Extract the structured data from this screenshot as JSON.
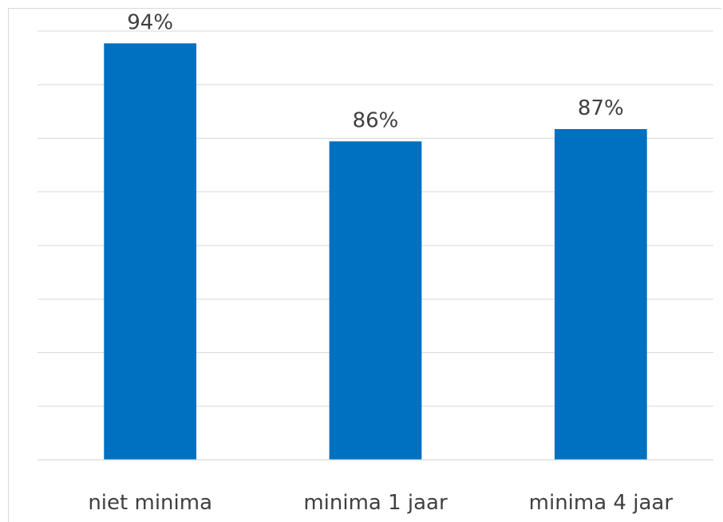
{
  "chart_data": {
    "type": "bar",
    "categories": [
      "niet minima",
      "minima 1 jaar",
      "minima 4 jaar"
    ],
    "values": [
      94,
      86,
      87
    ],
    "data_labels": [
      "94%",
      "86%",
      "87%"
    ],
    "unit": "%",
    "ylim": [
      60,
      95
    ],
    "grid": true,
    "legend": "none",
    "bar_color": "#0070c0",
    "title": "",
    "xlabel": "",
    "ylabel": ""
  }
}
